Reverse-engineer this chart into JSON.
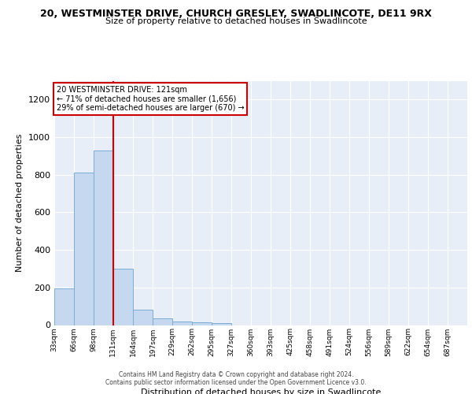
{
  "title": "20, WESTMINSTER DRIVE, CHURCH GRESLEY, SWADLINCOTE, DE11 9RX",
  "subtitle": "Size of property relative to detached houses in Swadlincote",
  "xlabel": "Distribution of detached houses by size in Swadlincote",
  "ylabel": "Number of detached properties",
  "annotation_line1": "20 WESTMINSTER DRIVE: 121sqm",
  "annotation_line2": "← 71% of detached houses are smaller (1,656)",
  "annotation_line3": "29% of semi-detached houses are larger (670) →",
  "bin_edges": [
    33,
    66,
    98,
    131,
    164,
    197,
    229,
    262,
    295,
    327,
    360,
    393,
    425,
    458,
    491,
    524,
    556,
    589,
    622,
    654,
    687
  ],
  "bin_counts": [
    197,
    810,
    928,
    299,
    82,
    35,
    17,
    15,
    10,
    0,
    0,
    0,
    0,
    0,
    0,
    0,
    0,
    0,
    0,
    0
  ],
  "bar_color": "#c5d8f0",
  "bar_edge_color": "#7aadd4",
  "vline_color": "#cc0000",
  "vline_x": 131,
  "background_color": "#e8eef8",
  "grid_color": "#ffffff",
  "annotation_box_facecolor": "#ffffff",
  "annotation_box_edgecolor": "#cc0000",
  "tick_labels": [
    "33sqm",
    "66sqm",
    "98sqm",
    "131sqm",
    "164sqm",
    "197sqm",
    "229sqm",
    "262sqm",
    "295sqm",
    "327sqm",
    "360sqm",
    "393sqm",
    "425sqm",
    "458sqm",
    "491sqm",
    "524sqm",
    "556sqm",
    "589sqm",
    "622sqm",
    "654sqm",
    "687sqm"
  ],
  "ylim": [
    0,
    1300
  ],
  "yticks": [
    0,
    200,
    400,
    600,
    800,
    1000,
    1200
  ],
  "footer_line1": "Contains HM Land Registry data © Crown copyright and database right 2024.",
  "footer_line2": "Contains public sector information licensed under the Open Government Licence v3.0.",
  "title_fontsize": 9,
  "subtitle_fontsize": 8
}
